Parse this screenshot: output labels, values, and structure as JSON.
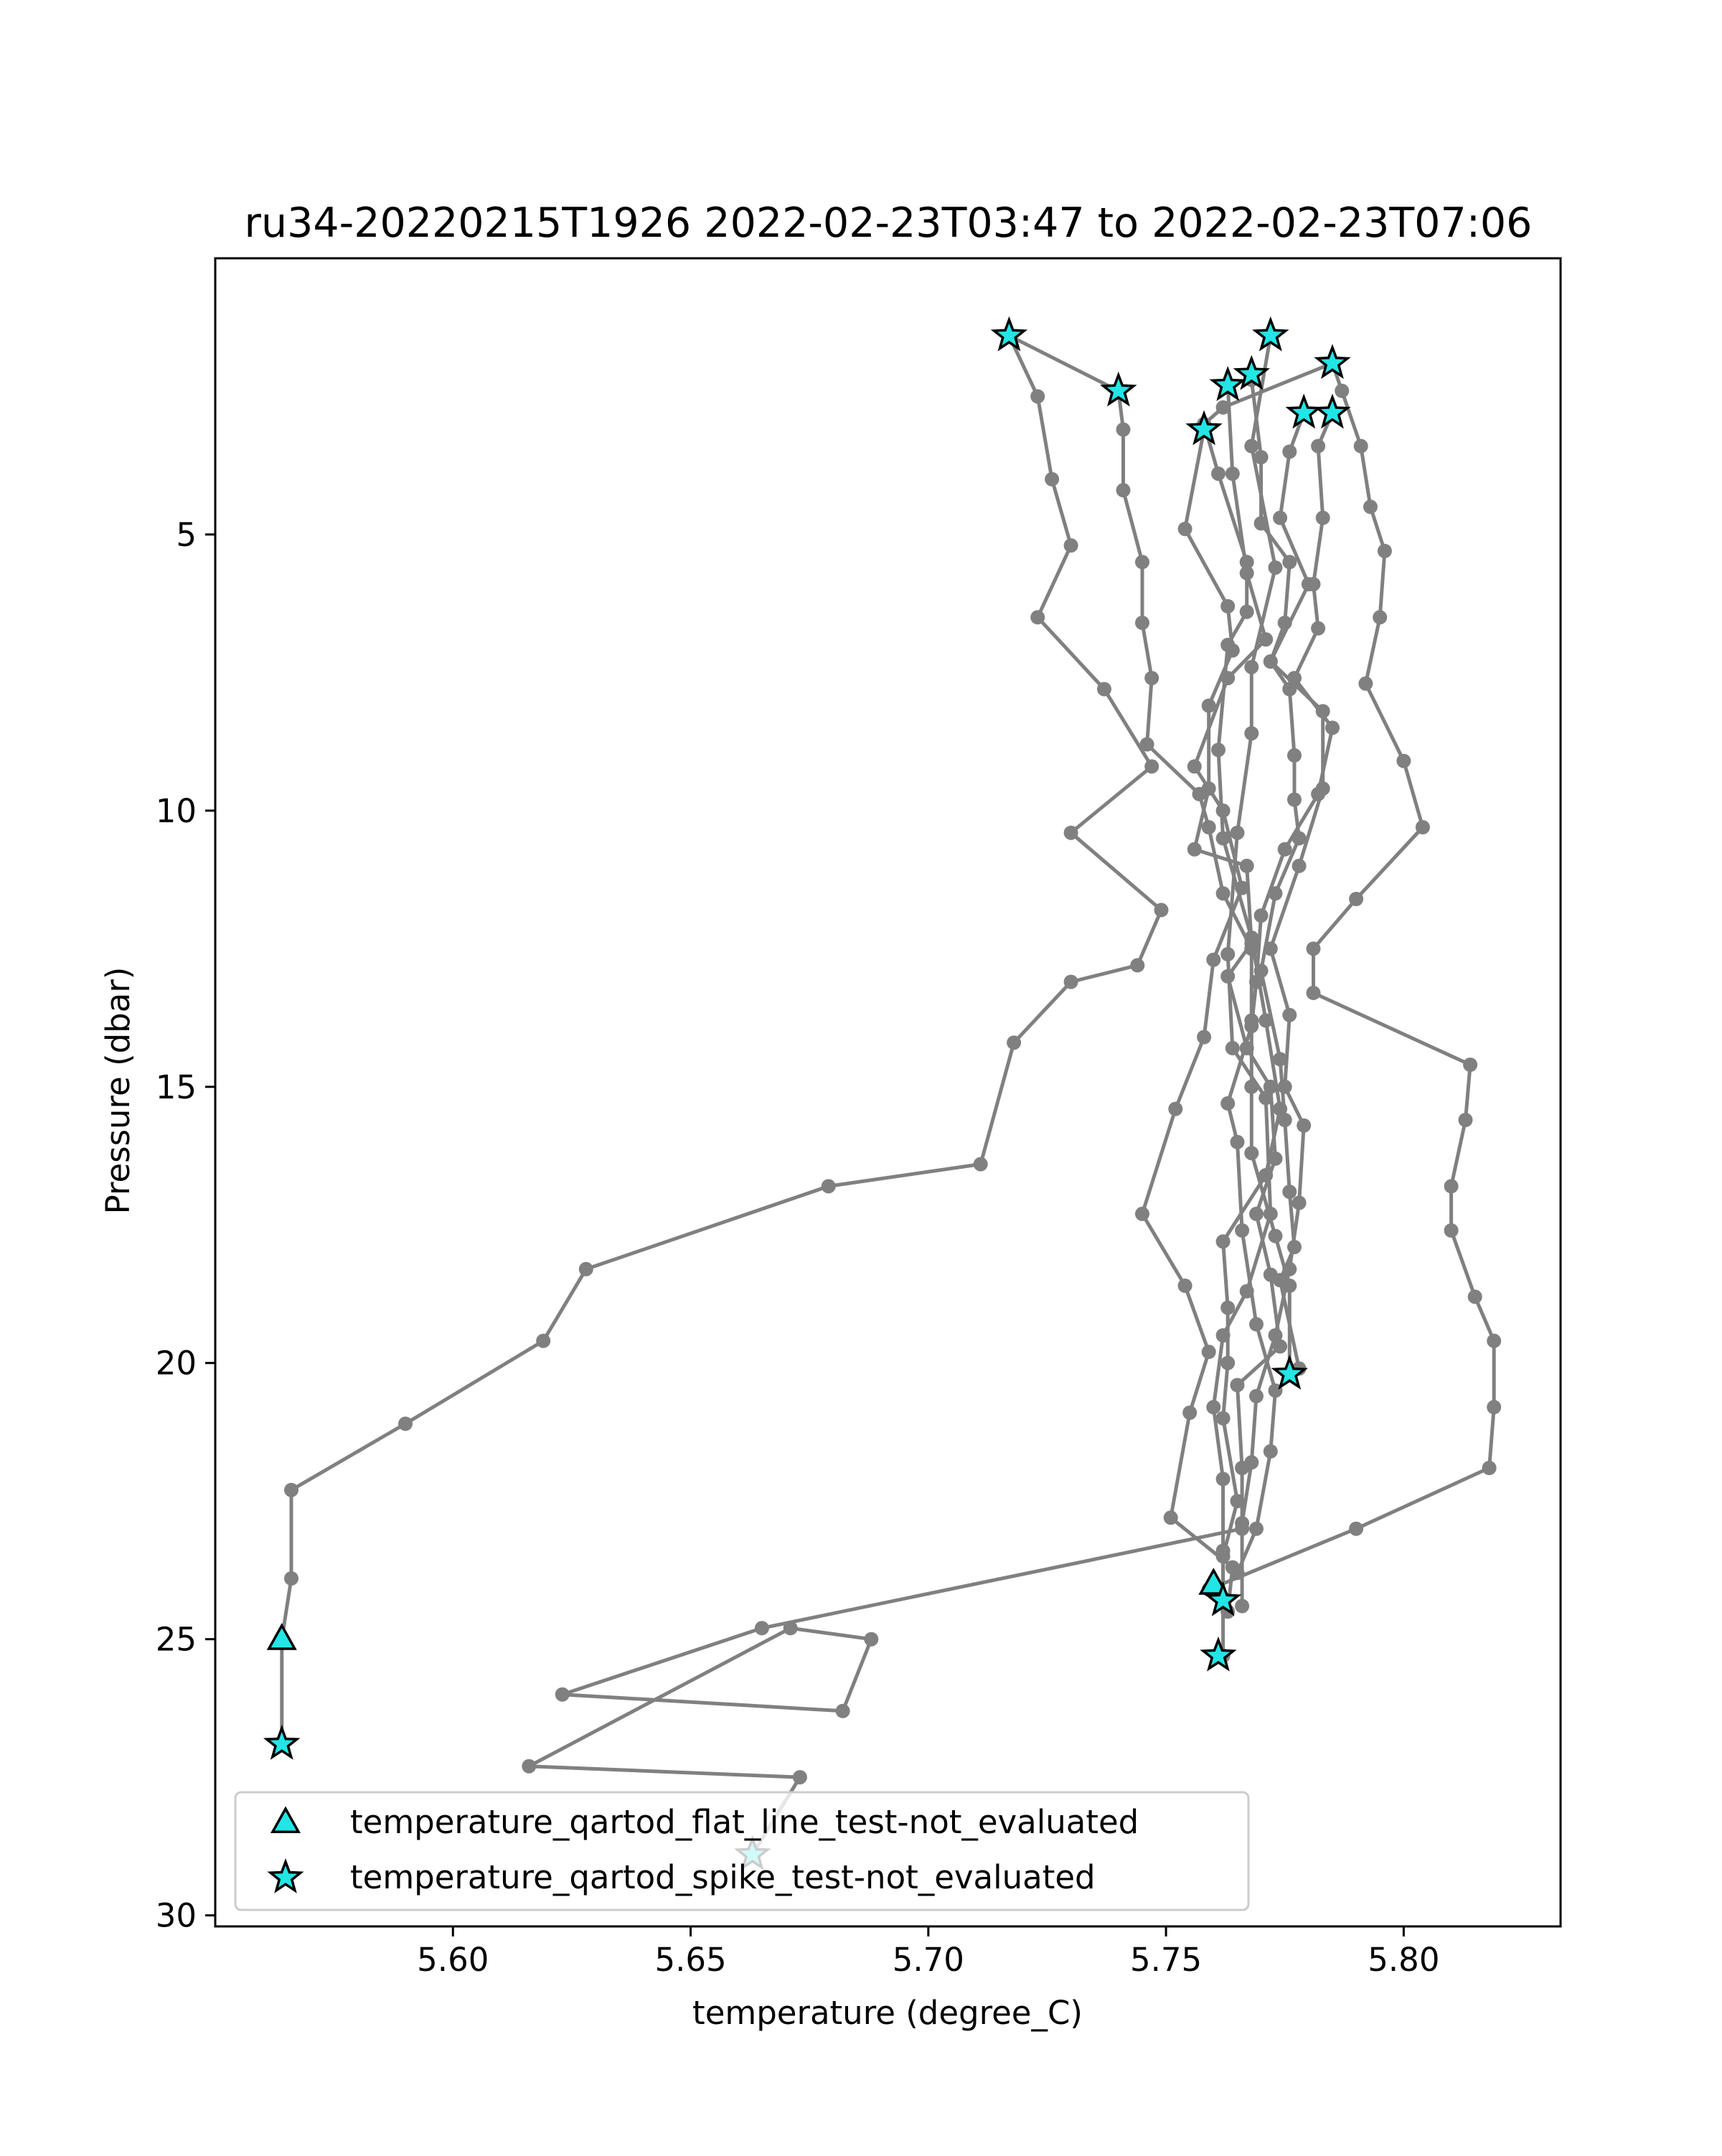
{
  "chart_data": {
    "type": "scatter",
    "title": "ru34-20220215T1926 2022-02-23T03:47 to 2022-02-23T07:06",
    "xlabel": "temperature (degree_C)",
    "ylabel": "Pressure (dbar)",
    "xlim": [
      5.55,
      5.833
    ],
    "ylim": [
      30.2,
      0.0
    ],
    "y_inverted": true,
    "xticks": [
      5.6,
      5.65,
      5.7,
      5.75,
      5.8
    ],
    "xtick_labels": [
      "5.60",
      "5.65",
      "5.70",
      "5.75",
      "5.80"
    ],
    "yticks": [
      5,
      10,
      15,
      20,
      25,
      30
    ],
    "ytick_labels": [
      "5",
      "10",
      "15",
      "20",
      "25",
      "30"
    ],
    "grid": false,
    "legend_position": "lower-left",
    "colors": {
      "profile_line": "#808080",
      "marker_fill": "#22e5e5",
      "marker_edge": "#000000"
    },
    "profiles": [
      {
        "points": [
          [
            5.717,
            1.4
          ],
          [
            5.723,
            2.5
          ],
          [
            5.726,
            4.0
          ],
          [
            5.73,
            5.2
          ],
          [
            5.723,
            6.5
          ],
          [
            5.737,
            7.8
          ],
          [
            5.747,
            9.2
          ],
          [
            5.73,
            10.4
          ],
          [
            5.749,
            11.8
          ],
          [
            5.744,
            12.8
          ],
          [
            5.73,
            13.1
          ],
          [
            5.718,
            14.2
          ],
          [
            5.711,
            16.4
          ],
          [
            5.679,
            16.8
          ],
          [
            5.628,
            18.3
          ],
          [
            5.619,
            19.6
          ],
          [
            5.59,
            21.1
          ],
          [
            5.566,
            22.3
          ],
          [
            5.566,
            23.9
          ],
          [
            5.564,
            25.0
          ],
          [
            5.564,
            26.9
          ]
        ]
      },
      {
        "points": [
          [
            5.717,
            1.4
          ],
          [
            5.74,
            2.4
          ],
          [
            5.741,
            3.1
          ],
          [
            5.741,
            4.2
          ],
          [
            5.745,
            5.5
          ],
          [
            5.745,
            6.6
          ],
          [
            5.747,
            7.6
          ],
          [
            5.746,
            8.8
          ],
          [
            5.757,
            9.7
          ],
          [
            5.759,
            10.3
          ],
          [
            5.762,
            11.5
          ],
          [
            5.768,
            12.5
          ],
          [
            5.768,
            13.8
          ],
          [
            5.768,
            15.0
          ],
          [
            5.768,
            16.2
          ],
          [
            5.773,
            17.7
          ],
          [
            5.776,
            18.6
          ],
          [
            5.776,
            20.2
          ]
        ]
      },
      {
        "points": [
          [
            5.772,
            1.4
          ],
          [
            5.768,
            3.4
          ],
          [
            5.773,
            5.6
          ],
          [
            5.768,
            7.4
          ],
          [
            5.768,
            8.6
          ],
          [
            5.765,
            10.4
          ],
          [
            5.763,
            12.6
          ],
          [
            5.764,
            14.3
          ],
          [
            5.771,
            15.2
          ],
          [
            5.772,
            17.3
          ],
          [
            5.767,
            18.7
          ],
          [
            5.762,
            19.5
          ],
          [
            5.76,
            20.8
          ],
          [
            5.762,
            22.1
          ],
          [
            5.762,
            23.4
          ],
          [
            5.762,
            24.3
          ]
        ]
      },
      {
        "points": [
          [
            5.785,
            1.9
          ],
          [
            5.787,
            2.4
          ],
          [
            5.791,
            3.4
          ],
          [
            5.793,
            4.5
          ],
          [
            5.796,
            5.3
          ],
          [
            5.795,
            6.5
          ],
          [
            5.792,
            7.7
          ],
          [
            5.8,
            9.1
          ],
          [
            5.804,
            10.3
          ],
          [
            5.79,
            11.6
          ],
          [
            5.781,
            12.5
          ],
          [
            5.781,
            13.3
          ],
          [
            5.814,
            14.6
          ],
          [
            5.813,
            15.6
          ],
          [
            5.81,
            16.8
          ],
          [
            5.81,
            17.6
          ],
          [
            5.815,
            18.8
          ],
          [
            5.819,
            19.6
          ],
          [
            5.819,
            20.8
          ],
          [
            5.818,
            21.9
          ],
          [
            5.79,
            23.0
          ],
          [
            5.759,
            24.1
          ]
        ]
      },
      {
        "points": [
          [
            5.785,
            1.9
          ],
          [
            5.762,
            2.7
          ],
          [
            5.758,
            3.0
          ],
          [
            5.761,
            3.9
          ],
          [
            5.767,
            5.5
          ],
          [
            5.767,
            6.4
          ],
          [
            5.763,
            7.0
          ],
          [
            5.761,
            8.9
          ],
          [
            5.762,
            10.5
          ],
          [
            5.768,
            12.3
          ],
          [
            5.771,
            13.8
          ],
          [
            5.774,
            15.4
          ],
          [
            5.771,
            16.6
          ],
          [
            5.762,
            17.8
          ],
          [
            5.763,
            19.0
          ],
          [
            5.763,
            20.0
          ],
          [
            5.762,
            21.0
          ],
          [
            5.765,
            22.5
          ],
          [
            5.762,
            23.5
          ],
          [
            5.762,
            25.3
          ]
        ]
      },
      {
        "points": [
          [
            5.758,
            3.1
          ],
          [
            5.754,
            4.9
          ],
          [
            5.763,
            6.3
          ],
          [
            5.764,
            7.1
          ],
          [
            5.759,
            8.1
          ],
          [
            5.759,
            9.6
          ],
          [
            5.756,
            10.7
          ],
          [
            5.767,
            11.0
          ],
          [
            5.768,
            12.4
          ],
          [
            5.763,
            13.0
          ],
          [
            5.767,
            14.3
          ],
          [
            5.772,
            15.0
          ],
          [
            5.773,
            16.3
          ],
          [
            5.769,
            17.3
          ],
          [
            5.772,
            18.4
          ],
          [
            5.774,
            19.7
          ],
          [
            5.765,
            20.4
          ],
          [
            5.766,
            21.9
          ],
          [
            5.766,
            23.0
          ],
          [
            5.665,
            24.8
          ],
          [
            5.623,
            26.0
          ],
          [
            5.682,
            26.3
          ],
          [
            5.688,
            25.0
          ],
          [
            5.671,
            24.8
          ],
          [
            5.616,
            27.3
          ],
          [
            5.673,
            27.5
          ],
          [
            5.663,
            28.9
          ]
        ]
      },
      {
        "points": [
          [
            5.768,
            2.2
          ],
          [
            5.77,
            3.6
          ],
          [
            5.77,
            4.8
          ],
          [
            5.776,
            5.5
          ],
          [
            5.775,
            6.6
          ],
          [
            5.772,
            7.3
          ],
          [
            5.776,
            7.8
          ],
          [
            5.777,
            9.0
          ],
          [
            5.777,
            9.8
          ],
          [
            5.778,
            10.5
          ],
          [
            5.773,
            11.5
          ],
          [
            5.77,
            12.9
          ],
          [
            5.774,
            14.5
          ],
          [
            5.775,
            15.6
          ],
          [
            5.776,
            16.9
          ],
          [
            5.777,
            17.9
          ],
          [
            5.774,
            18.5
          ],
          [
            5.778,
            20.1
          ]
        ]
      },
      {
        "points": [
          [
            5.763,
            2.3
          ],
          [
            5.764,
            3.9
          ],
          [
            5.767,
            5.7
          ],
          [
            5.771,
            6.9
          ],
          [
            5.763,
            7.6
          ],
          [
            5.756,
            9.2
          ],
          [
            5.762,
            10.0
          ],
          [
            5.766,
            11.4
          ],
          [
            5.76,
            12.7
          ],
          [
            5.758,
            14.1
          ],
          [
            5.752,
            15.4
          ],
          [
            5.745,
            17.3
          ],
          [
            5.754,
            18.6
          ],
          [
            5.759,
            19.8
          ],
          [
            5.755,
            20.9
          ],
          [
            5.751,
            22.8
          ],
          [
            5.764,
            23.7
          ],
          [
            5.763,
            24.5
          ]
        ]
      },
      {
        "points": [
          [
            5.779,
            2.8
          ],
          [
            5.776,
            3.5
          ],
          [
            5.774,
            4.7
          ],
          [
            5.78,
            5.9
          ],
          [
            5.772,
            7.3
          ],
          [
            5.783,
            8.2
          ],
          [
            5.783,
            9.6
          ],
          [
            5.778,
            11.0
          ],
          [
            5.772,
            12.5
          ],
          [
            5.776,
            13.7
          ],
          [
            5.775,
            15.0
          ],
          [
            5.779,
            15.7
          ],
          [
            5.778,
            17.1
          ],
          [
            5.776,
            18.3
          ],
          [
            5.773,
            19.5
          ],
          [
            5.769,
            20.6
          ],
          [
            5.768,
            21.8
          ],
          [
            5.766,
            22.9
          ],
          [
            5.766,
            24.4
          ]
        ]
      },
      {
        "points": [
          [
            5.785,
            2.8
          ],
          [
            5.782,
            3.4
          ],
          [
            5.783,
            4.7
          ],
          [
            5.781,
            5.9
          ],
          [
            5.782,
            6.7
          ],
          [
            5.777,
            7.6
          ],
          [
            5.785,
            8.5
          ],
          [
            5.782,
            9.7
          ],
          [
            5.775,
            10.7
          ],
          [
            5.77,
            11.9
          ],
          [
            5.769,
            13.1
          ],
          [
            5.768,
            13.9
          ],
          [
            5.763,
            15.3
          ],
          [
            5.765,
            16.0
          ],
          [
            5.766,
            17.6
          ],
          [
            5.769,
            19.3
          ],
          [
            5.773,
            20.5
          ],
          [
            5.772,
            21.6
          ],
          [
            5.769,
            23.0
          ],
          [
            5.765,
            23.8
          ]
        ]
      }
    ],
    "series": [
      {
        "name": "temperature_qartod_flat_line_test-not_evaluated",
        "marker": "triangle",
        "points": [
          [
            5.564,
            25.0
          ],
          [
            5.76,
            24.0
          ]
        ]
      },
      {
        "name": "temperature_qartod_spike_test-not_evaluated",
        "marker": "star",
        "points": [
          [
            5.717,
            1.4
          ],
          [
            5.74,
            2.4
          ],
          [
            5.772,
            1.4
          ],
          [
            5.785,
            1.9
          ],
          [
            5.768,
            2.1
          ],
          [
            5.763,
            2.3
          ],
          [
            5.758,
            3.1
          ],
          [
            5.779,
            2.8
          ],
          [
            5.785,
            2.8
          ],
          [
            5.776,
            20.2
          ],
          [
            5.762,
            24.3
          ],
          [
            5.761,
            25.3
          ],
          [
            5.564,
            26.9
          ],
          [
            5.663,
            28.9
          ]
        ]
      }
    ]
  }
}
